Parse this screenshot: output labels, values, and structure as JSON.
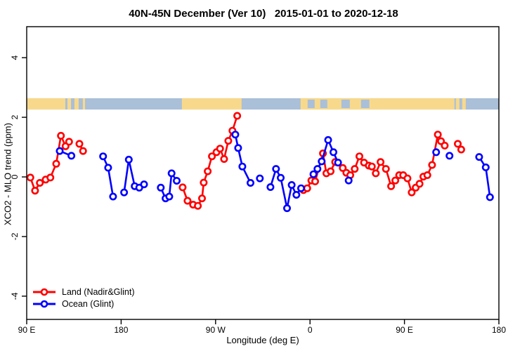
{
  "title": "40N-45N December (Ver 10)   2015-01-01 to 2020-12-18",
  "chart_data": {
    "type": "scatter",
    "title": "40N-45N December (Ver 10)   2015-01-01 to 2020-12-18",
    "xlabel": "Longitude (deg E)",
    "ylabel": "XCO2 - MLO trend (ppm)",
    "x_axis": {
      "note": "longitude axis spans 450 deg starting at 90E wrapping through 180, 90W, 0, 90E to 180",
      "span_deg": 450,
      "ticks": [
        {
          "pos_deg": 0,
          "label": "90 E"
        },
        {
          "pos_deg": 90,
          "label": "180"
        },
        {
          "pos_deg": 180,
          "label": "90 W"
        },
        {
          "pos_deg": 270,
          "label": "0"
        },
        {
          "pos_deg": 360,
          "label": "90 E"
        },
        {
          "pos_deg": 450,
          "label": "180"
        }
      ]
    },
    "y_axis": {
      "min": -4.78,
      "max": 5.04,
      "ticks": [
        -4,
        -2,
        0,
        2,
        4
      ],
      "grid": false
    },
    "map_band": {
      "description": "land/ocean strip at 40N-45N drawn across plot",
      "top_ppm": 2.64,
      "bottom_ppm": 2.26,
      "ocean_color": "#aabfd8",
      "land_color": "#f8d98c",
      "land_segments_deg": [
        [
          0,
          36.8
        ],
        [
          147.9,
          204.8
        ],
        [
          261.0,
          407.6
        ]
      ],
      "land_specks_deg": [
        [
          38.8,
          42.2
        ],
        [
          45.5,
          49.5
        ],
        [
          53.5,
          55.6
        ],
        [
          409.0,
          412.4
        ],
        [
          415.0,
          418.4
        ]
      ],
      "ocean_patches_deg": [
        [
          267.7,
          274.4
        ],
        [
          279.8,
          286.5
        ],
        [
          299.9,
          307.9
        ],
        [
          318.6,
          326.6
        ]
      ]
    },
    "legend": {
      "position": "bottom-left",
      "land_label": "Land (Nadir&Glint)",
      "ocean_label": "Ocean (Glint)"
    },
    "series": [
      {
        "name": "Land (Nadir&Glint)",
        "color": "#ff0000",
        "marker": "open-circle",
        "segments_deg_ppm": [
          [
            [
              3.5,
              -0.02
            ],
            [
              8.0,
              -0.46
            ],
            [
              12.5,
              -0.2
            ],
            [
              18.1,
              -0.09
            ],
            [
              22.6,
              -0.02
            ],
            [
              28.1,
              0.44
            ],
            [
              32.6,
              1.38
            ],
            [
              37.0,
              1.03
            ],
            [
              40.4,
              1.18
            ]
          ],
          [
            [
              50.2,
              1.11
            ],
            [
              53.7,
              0.87
            ]
          ],
          [
            [
              148.6,
              -0.35
            ],
            [
              153.3,
              -0.8
            ],
            [
              158.6,
              -0.93
            ],
            [
              163.1,
              -0.97
            ],
            [
              167.1,
              -0.72
            ],
            [
              168.7,
              -0.19
            ],
            [
              172.5,
              0.19
            ],
            [
              176.5,
              0.69
            ],
            [
              180.9,
              0.83
            ],
            [
              184.3,
              0.95
            ],
            [
              188.1,
              0.6
            ],
            [
              192.1,
              1.21
            ],
            [
              196.1,
              1.55
            ],
            [
              200.6,
              2.05
            ]
          ],
          [
            [
              263.7,
              -0.44
            ],
            [
              267.3,
              -0.38
            ],
            [
              271.3,
              -0.12
            ],
            [
              274.9,
              -0.15
            ],
            [
              282.3,
              0.79
            ],
            [
              285.6,
              0.12
            ],
            [
              289.6,
              0.19
            ],
            [
              294.0,
              0.5
            ],
            [
              301.2,
              0.3
            ],
            [
              304.6,
              0.14
            ],
            [
              308.4,
              0.06
            ],
            [
              312.6,
              0.27
            ],
            [
              317.1,
              0.69
            ],
            [
              321.5,
              0.48
            ],
            [
              326.0,
              0.38
            ],
            [
              328.9,
              0.35
            ],
            [
              332.7,
              0.12
            ],
            [
              337.2,
              0.5
            ],
            [
              342.3,
              0.27
            ],
            [
              347.3,
              -0.31
            ],
            [
              351.3,
              -0.12
            ],
            [
              355.0,
              0.06
            ],
            [
              358.8,
              0.06
            ],
            [
              362.9,
              -0.05
            ],
            [
              366.9,
              -0.52
            ],
            [
              370.7,
              -0.36
            ],
            [
              374.4,
              -0.23
            ],
            [
              378.0,
              0.01
            ],
            [
              381.8,
              0.06
            ],
            [
              386.3,
              0.4
            ],
            [
              391.8,
              1.42
            ],
            [
              394.8,
              1.2
            ],
            [
              398.4,
              1.05
            ]
          ],
          [
            [
              410.8,
              1.11
            ],
            [
              414.1,
              0.92
            ]
          ]
        ]
      },
      {
        "name": "Ocean (Glint)",
        "color": "#0000ff",
        "marker": "open-circle",
        "segments_deg_ppm": [
          [
            [
              31.5,
              0.87
            ],
            [
              42.6,
              0.71
            ]
          ],
          [
            [
              72.8,
              0.69
            ],
            [
              77.6,
              0.31
            ],
            [
              82.3,
              -0.66
            ]
          ],
          [
            [
              92.8,
              -0.52
            ],
            [
              97.3,
              0.58
            ],
            [
              102.9,
              -0.31
            ]
          ],
          [
            [
              107.3,
              -0.36
            ],
            [
              111.8,
              -0.25
            ]
          ],
          [
            [
              127.8,
              -0.36
            ],
            [
              132.3,
              -0.72
            ],
            [
              135.9,
              -0.66
            ],
            [
              138.1,
              0.12
            ],
            [
              143.0,
              -0.13
            ]
          ],
          [
            [
              198.8,
              1.42
            ],
            [
              201.5,
              0.97
            ],
            [
              205.5,
              0.35
            ],
            [
              213.3,
              -0.2
            ]
          ],
          [
            [
              222.2,
              -0.05
            ]
          ],
          [
            [
              232.3,
              -0.34
            ],
            [
              237.6,
              0.27
            ],
            [
              242.1,
              -0.03
            ],
            [
              248.1,
              -1.05
            ],
            [
              252.5,
              -0.27
            ],
            [
              257.0,
              -0.6
            ],
            [
              261.5,
              -0.38
            ]
          ],
          [
            [
              273.3,
              0.09
            ],
            [
              277.1,
              0.27
            ],
            [
              281.1,
              0.52
            ],
            [
              287.3,
              1.24
            ],
            [
              292.3,
              0.83
            ],
            [
              296.7,
              0.48
            ]
          ],
          [
            [
              306.8,
              -0.12
            ]
          ],
          [
            [
              390.2,
              0.83
            ]
          ],
          [
            [
              402.9,
              0.71
            ]
          ],
          [
            [
              431.2,
              0.67
            ],
            [
              437.5,
              0.32
            ],
            [
              441.5,
              -0.68
            ]
          ]
        ]
      }
    ]
  }
}
